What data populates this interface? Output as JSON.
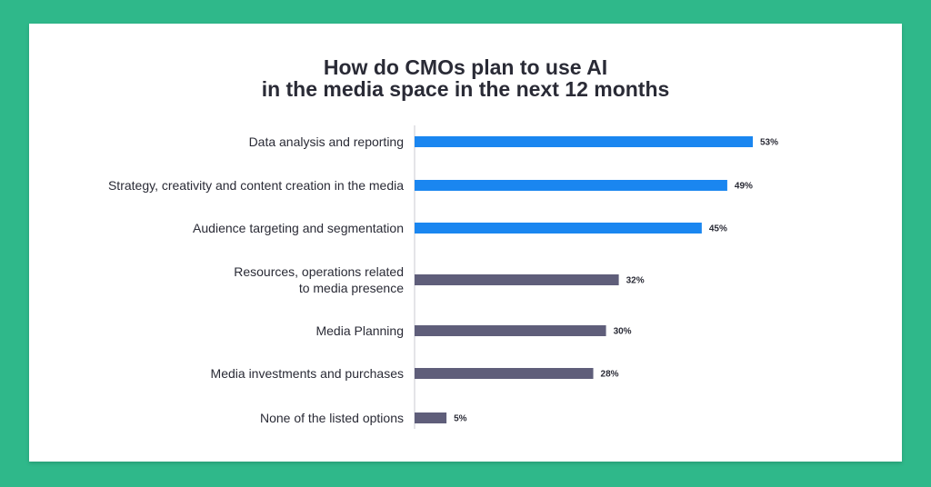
{
  "background_color": "#2fb88a",
  "chart_data": {
    "type": "bar",
    "orientation": "horizontal",
    "title": [
      "How do CMOs plan to use AI",
      "in the media space in the next 12 months"
    ],
    "categories": [
      [
        "Data analysis and reporting"
      ],
      [
        "Strategy, creativity and content creation in the media"
      ],
      [
        "Audience targeting and segmentation"
      ],
      [
        "Resources, operations related",
        "to media presence"
      ],
      [
        "Media Planning"
      ],
      [
        "Media investments and purchases"
      ],
      [
        "None of the listed options"
      ]
    ],
    "values": [
      53,
      49,
      45,
      32,
      30,
      28,
      5
    ],
    "value_labels": [
      "53%",
      "49%",
      "45%",
      "32%",
      "30%",
      "28%",
      "5%"
    ],
    "highlight_count": 3,
    "colors": {
      "highlight": "#1a86f0",
      "default": "#5f5e7a",
      "axis": "#c8c8d0",
      "label": "#2a2b36"
    },
    "xlim": [
      0,
      53
    ],
    "grid": false,
    "legend": "none"
  }
}
